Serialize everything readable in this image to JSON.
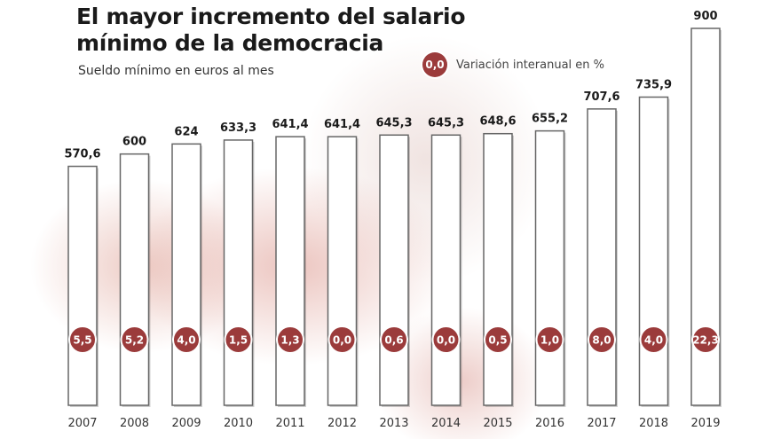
{
  "chart_data": {
    "type": "bar",
    "title": "El mayor incremento del salario mínimo de la democracia",
    "subtitle": "Sueldo mínimo en euros al mes",
    "legend": {
      "marker_label": "0,0",
      "text": "Variación interanual en %",
      "placement": "top-right"
    },
    "categories": [
      "2007",
      "2008",
      "2009",
      "2010",
      "2011",
      "2012",
      "2013",
      "2014",
      "2015",
      "2016",
      "2017",
      "2018",
      "2019"
    ],
    "values": [
      570.6,
      600,
      624,
      633.3,
      641.4,
      641.4,
      645.3,
      645.3,
      648.6,
      655.2,
      707.6,
      735.9,
      900
    ],
    "value_labels": [
      "570,6",
      "600",
      "624",
      "633,3",
      "641,4",
      "641,4",
      "645,3",
      "645,3",
      "648,6",
      "655,2",
      "707,6",
      "735,9",
      "900"
    ],
    "variation_pct": [
      5.5,
      5.2,
      4.0,
      1.5,
      1.3,
      0.0,
      0.6,
      0.0,
      0.5,
      1.0,
      8.0,
      4.0,
      22.3
    ],
    "variation_labels": [
      "5,5",
      "5,2",
      "4,0",
      "1,5",
      "1,3",
      "0,0",
      "0,6",
      "0,0",
      "0,5",
      "1,0",
      "8,0",
      "4,0",
      "22,3"
    ],
    "ylim": [
      0,
      900
    ],
    "grid": false,
    "colors": {
      "bar_fill": "#ffffff",
      "bar_stroke": "#666666",
      "marker": "#9b3b3b"
    }
  }
}
